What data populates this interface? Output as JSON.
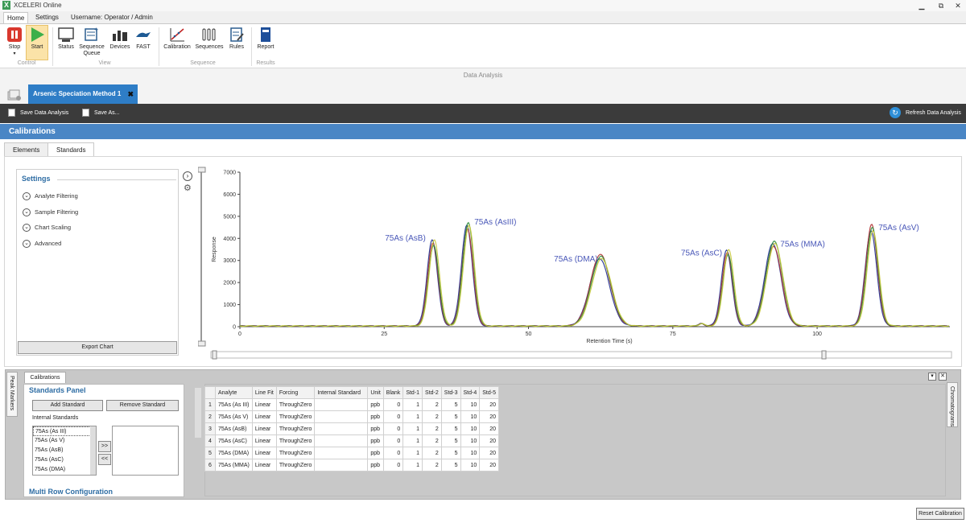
{
  "window": {
    "title": "XCELERI Online",
    "min": "▁",
    "restore": "⧉",
    "close": "✕"
  },
  "menu_tabs": [
    "Home",
    "Settings",
    "Username: Operator / Admin"
  ],
  "ribbon": {
    "stop": "Stop",
    "start": "Start",
    "control_group": "Control",
    "status": "Status",
    "sequence_queue": "Sequence Queue",
    "devices": "Devices",
    "fast": "FAST",
    "view_group": "View",
    "calibration": "Calibration",
    "sequences": "Sequences",
    "rules": "Rules",
    "sequence_group": "Sequence",
    "report": "Report",
    "results_group": "Results"
  },
  "data_band": "Data Analysis",
  "doc_tab": {
    "label": "Arsenic Speciation Method 1",
    "close": "✖"
  },
  "toolbar": {
    "save": "Save Data Analysis",
    "save_as": "Save As...",
    "refresh": "Refresh Data Analysis"
  },
  "section_title": "Calibrations",
  "subtabs": [
    "Elements",
    "Standards"
  ],
  "settings": {
    "heading": "Settings",
    "items": [
      "Analyte Filtering",
      "Sample Filtering",
      "Chart Scaling",
      "Advanced"
    ],
    "export": "Export Chart"
  },
  "chart_data": {
    "type": "line",
    "xlabel": "Retention Time (s)",
    "ylabel": "Response",
    "xlim": [
      0,
      123
    ],
    "ylim": [
      0,
      7000
    ],
    "x_ticks": [
      0,
      25,
      50,
      75,
      100
    ],
    "y_ticks": [
      0,
      1000,
      2000,
      3000,
      4000,
      5000,
      6000,
      7000
    ],
    "peaks": [
      {
        "label": "75As (AsB)",
        "rt": 33.5,
        "height": 3900
      },
      {
        "label": "75As (AsIII)",
        "rt": 39.5,
        "height": 4700
      },
      {
        "label": "75As (DMA)",
        "rt": 62.5,
        "height": 3250
      },
      {
        "label": "75As (AsC)",
        "rt": 84.5,
        "height": 3450
      },
      {
        "label": "75As (MMA)",
        "rt": 92.5,
        "height": 3850
      },
      {
        "label": "75As (AsV)",
        "rt": 109.5,
        "height": 4600
      }
    ],
    "series_colors": [
      "#1f2f8f",
      "#b03030",
      "#2e8b3a",
      "#c8c83a"
    ]
  },
  "bottom": {
    "tab": "Calibrations",
    "peak_markers": "Peak Markers",
    "chromatograms": "Chromatograms",
    "standards_panel": "Standards Panel",
    "add_standard": "Add Standard",
    "remove_standard": "Remove Standard",
    "internal_standards": "Internal Standards",
    "internal_list": [
      "75As (As III)",
      "75As (As V)",
      "75As (AsB)",
      "75As (AsC)",
      "75As (DMA)"
    ],
    "move_right": ">>",
    "move_left": "<<",
    "multi_row": "Multi Row Configuration",
    "pin": "▾",
    "close": "✕"
  },
  "grid": {
    "columns": [
      "Analyte",
      "Line Fit",
      "Forcing",
      "Internal Standard",
      "Unit",
      "Blank",
      "Std-1",
      "Std-2",
      "Std-3",
      "Std-4",
      "Std-5"
    ],
    "rows": [
      [
        "1",
        "75As (As III)",
        "Linear",
        "ThroughZero",
        "",
        "ppb",
        "0",
        "1",
        "2",
        "5",
        "10",
        "20"
      ],
      [
        "2",
        "75As (As V)",
        "Linear",
        "ThroughZero",
        "",
        "ppb",
        "0",
        "1",
        "2",
        "5",
        "10",
        "20"
      ],
      [
        "3",
        "75As (AsB)",
        "Linear",
        "ThroughZero",
        "",
        "ppb",
        "0",
        "1",
        "2",
        "5",
        "10",
        "20"
      ],
      [
        "4",
        "75As (AsC)",
        "Linear",
        "ThroughZero",
        "",
        "ppb",
        "0",
        "1",
        "2",
        "5",
        "10",
        "20"
      ],
      [
        "5",
        "75As (DMA)",
        "Linear",
        "ThroughZero",
        "",
        "ppb",
        "0",
        "1",
        "2",
        "5",
        "10",
        "20"
      ],
      [
        "6",
        "75As (MMA)",
        "Linear",
        "ThroughZero",
        "",
        "ppb",
        "0",
        "1",
        "2",
        "5",
        "10",
        "20"
      ]
    ]
  },
  "reset": "Reset Calibration"
}
